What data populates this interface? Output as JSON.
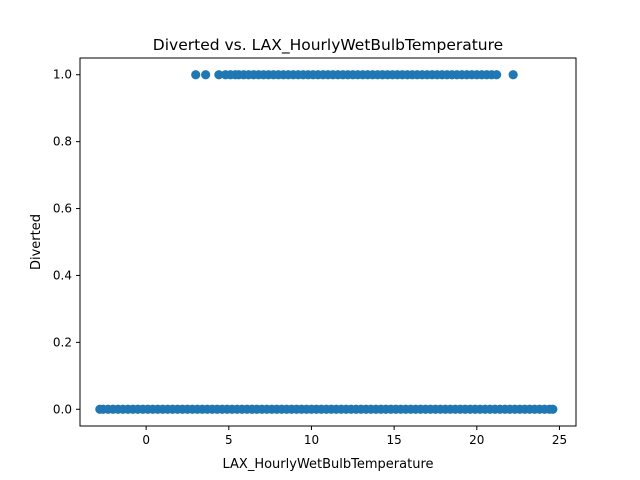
{
  "chart_data": {
    "type": "scatter",
    "title": "Diverted vs. LAX_HourlyWetBulbTemperature",
    "xlabel": "LAX_HourlyWetBulbTemperature",
    "ylabel": "Diverted",
    "xlim": [
      -4,
      26
    ],
    "ylim": [
      -0.05,
      1.05
    ],
    "x_ticks": [
      0,
      5,
      10,
      15,
      20,
      25
    ],
    "x_tick_labels": [
      "0",
      "5",
      "10",
      "15",
      "20",
      "25"
    ],
    "y_ticks": [
      0.0,
      0.2,
      0.4,
      0.6,
      0.8,
      1.0
    ],
    "y_tick_labels": [
      "0.0",
      "0.2",
      "0.4",
      "0.6",
      "0.8",
      "1.0"
    ],
    "grid": false,
    "legend": "none",
    "point_color": "#1f77b4",
    "series": [
      {
        "y": 1,
        "x": [
          3.0,
          3.6,
          4.4,
          4.8,
          5.1,
          5.4,
          5.6,
          5.9,
          6.2,
          6.5,
          6.8,
          7.1,
          7.4,
          7.7,
          8.0,
          8.3,
          8.6,
          8.9,
          9.2,
          9.5,
          9.8,
          10.1,
          10.4,
          10.7,
          11.0,
          11.3,
          11.6,
          11.9,
          12.2,
          12.5,
          12.8,
          13.1,
          13.4,
          13.7,
          14.0,
          14.3,
          14.6,
          14.9,
          15.2,
          15.5,
          15.8,
          16.1,
          16.4,
          16.7,
          17.0,
          17.3,
          17.6,
          17.9,
          18.2,
          18.5,
          18.8,
          19.1,
          19.4,
          19.7,
          20.0,
          20.3,
          20.6,
          20.9,
          21.2,
          22.2
        ]
      },
      {
        "y": 0,
        "x": [
          -2.8,
          -2.6,
          -2.3,
          -2.0,
          -1.7,
          -1.4,
          -1.1,
          -0.8,
          -0.5,
          -0.2,
          0.1,
          0.4,
          0.7,
          1.0,
          1.3,
          1.6,
          1.9,
          2.2,
          2.5,
          2.8,
          3.1,
          3.4,
          3.7,
          4.0,
          4.3,
          4.6,
          4.9,
          5.2,
          5.5,
          5.8,
          6.1,
          6.4,
          6.7,
          7.0,
          7.3,
          7.6,
          7.9,
          8.2,
          8.5,
          8.8,
          9.1,
          9.4,
          9.7,
          10.0,
          10.3,
          10.6,
          10.9,
          11.2,
          11.5,
          11.8,
          12.1,
          12.4,
          12.7,
          13.0,
          13.3,
          13.6,
          13.9,
          14.2,
          14.5,
          14.8,
          15.1,
          15.4,
          15.7,
          16.0,
          16.3,
          16.6,
          16.9,
          17.2,
          17.5,
          17.8,
          18.1,
          18.4,
          18.7,
          19.0,
          19.3,
          19.6,
          19.9,
          20.2,
          20.5,
          20.8,
          21.1,
          21.4,
          21.7,
          22.0,
          22.3,
          22.6,
          22.9,
          23.2,
          23.5,
          23.8,
          24.1,
          24.4,
          24.6
        ]
      }
    ]
  }
}
